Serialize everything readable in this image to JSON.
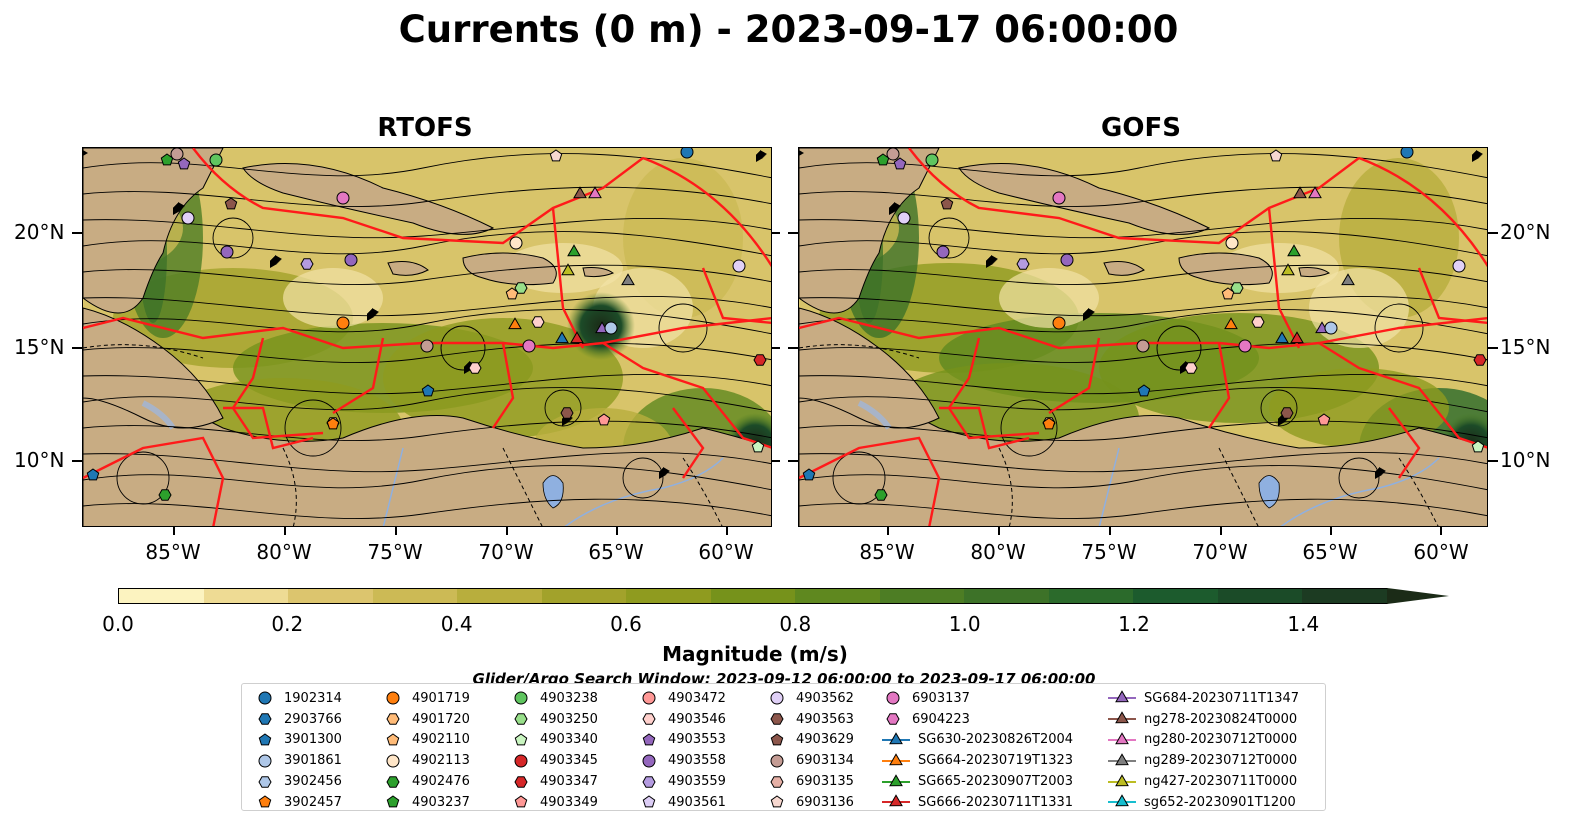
{
  "title": "Currents (0 m) - 2023-09-17 06:00:00",
  "panels": [
    {
      "title": "RTOFS"
    },
    {
      "title": "GOFS"
    }
  ],
  "lat_labels": [
    "20°N",
    "15°N",
    "10°N"
  ],
  "lon_labels": [
    "85°W",
    "80°W",
    "75°W",
    "70°W",
    "65°W",
    "60°W"
  ],
  "colorbar": {
    "label": "Magnitude (m/s)",
    "ticks": [
      "0.0",
      "0.2",
      "0.4",
      "0.6",
      "0.8",
      "1.0",
      "1.2",
      "1.4"
    ],
    "range": [
      0,
      1.5
    ],
    "colors": [
      "#fcf3c0",
      "#eedb94",
      "#dcc56e",
      "#ccba55",
      "#b8ae3d",
      "#a2a22b",
      "#8f9b1f",
      "#76921b",
      "#5f881f",
      "#4d7d24",
      "#3d7228",
      "#2b6a2b",
      "#1c5b2d",
      "#1b4b28",
      "#1c3b22"
    ]
  },
  "search_note": "Glider/Argo Search Window: 2023-09-12 06:00:00 to 2023-09-17 06:00:00",
  "legend": {
    "columns": [
      [
        {
          "label": "1902314",
          "marker": "circle",
          "color": "#1f77b4"
        },
        {
          "label": "2903766",
          "marker": "hexagon",
          "color": "#1f77b4"
        },
        {
          "label": "3901300",
          "marker": "pentagon",
          "color": "#1f77b4"
        },
        {
          "label": "3901861",
          "marker": "circle",
          "color": "#aec7e8"
        },
        {
          "label": "3902456",
          "marker": "hexagon",
          "color": "#aec7e8"
        },
        {
          "label": "3902457",
          "marker": "pentagon",
          "color": "#ff7f0e"
        }
      ],
      [
        {
          "label": "4901719",
          "marker": "circle",
          "color": "#ff7f0e"
        },
        {
          "label": "4901720",
          "marker": "hexagon",
          "color": "#ffbb78"
        },
        {
          "label": "4902110",
          "marker": "pentagon",
          "color": "#ffbb78"
        },
        {
          "label": "4902113",
          "marker": "circle",
          "color": "#ffe6c8"
        },
        {
          "label": "4902476",
          "marker": "hexagon",
          "color": "#2ca02c"
        },
        {
          "label": "4903237",
          "marker": "pentagon",
          "color": "#2ca02c"
        }
      ],
      [
        {
          "label": "4903238",
          "marker": "circle",
          "color": "#5fc55f"
        },
        {
          "label": "4903250",
          "marker": "hexagon",
          "color": "#98df8a"
        },
        {
          "label": "4903340",
          "marker": "pentagon",
          "color": "#c9f5c0"
        },
        {
          "label": "4903345",
          "marker": "circle",
          "color": "#d62728"
        },
        {
          "label": "4903347",
          "marker": "hexagon",
          "color": "#d62728"
        },
        {
          "label": "4903349",
          "marker": "pentagon",
          "color": "#ff9896"
        }
      ],
      [
        {
          "label": "4903472",
          "marker": "circle",
          "color": "#ff9896"
        },
        {
          "label": "4903546",
          "marker": "hexagon",
          "color": "#ffd0cc"
        },
        {
          "label": "4903553",
          "marker": "pentagon",
          "color": "#9467bd"
        },
        {
          "label": "4903558",
          "marker": "circle",
          "color": "#9467bd"
        },
        {
          "label": "4903559",
          "marker": "hexagon",
          "color": "#b49be0"
        },
        {
          "label": "4903561",
          "marker": "pentagon",
          "color": "#dccdf5"
        }
      ],
      [
        {
          "label": "4903562",
          "marker": "circle",
          "color": "#e0d0f7"
        },
        {
          "label": "4903563",
          "marker": "hexagon",
          "color": "#8c564b"
        },
        {
          "label": "4903629",
          "marker": "pentagon",
          "color": "#8c564b"
        },
        {
          "label": "6903134",
          "marker": "circle",
          "color": "#c49c94"
        },
        {
          "label": "6903135",
          "marker": "hexagon",
          "color": "#e6b0a6"
        },
        {
          "label": "6903136",
          "marker": "pentagon",
          "color": "#f7d8d0"
        }
      ],
      [
        {
          "label": "6903137",
          "marker": "circle",
          "color": "#e377c2"
        },
        {
          "label": "6904223",
          "marker": "hexagon",
          "color": "#e377c2"
        },
        {
          "label": "SG630-20230826T2004",
          "marker": "triangle",
          "color": "#1f77b4"
        },
        {
          "label": "SG664-20230719T1323",
          "marker": "triangle",
          "color": "#ff7f0e"
        },
        {
          "label": "SG665-20230907T2003",
          "marker": "triangle",
          "color": "#2ca02c"
        },
        {
          "label": "SG666-20230711T1331",
          "marker": "triangle",
          "color": "#d62728"
        }
      ],
      [
        {
          "label": "SG684-20230711T1347",
          "marker": "triangle",
          "color": "#9467bd"
        },
        {
          "label": "ng278-20230824T0000",
          "marker": "triangle",
          "color": "#8c564b"
        },
        {
          "label": "ng280-20230712T0000",
          "marker": "triangle",
          "color": "#e377c2"
        },
        {
          "label": "ng289-20230712T0000",
          "marker": "triangle",
          "color": "#7f7f7f"
        },
        {
          "label": "ng427-20230711T0000",
          "marker": "triangle",
          "color": "#bcbd22"
        },
        {
          "label": "sg652-20230901T1200",
          "marker": "triangle",
          "color": "#17becf"
        }
      ]
    ]
  }
}
